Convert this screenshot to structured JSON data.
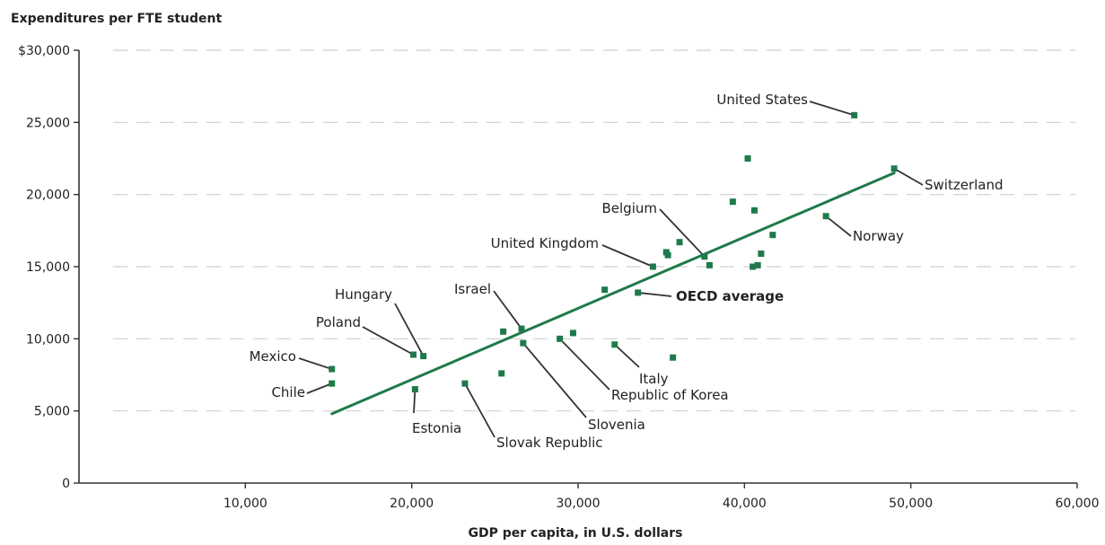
{
  "chart_data": {
    "type": "scatter",
    "title": "Expenditures per FTE student",
    "xlabel": "GDP per capita, in U.S. dollars",
    "ylabel": "Expenditures per FTE student",
    "xlim": [
      0,
      60000
    ],
    "ylim": [
      0,
      30000
    ],
    "x_ticks": [
      {
        "value": 10000,
        "label": "10,000"
      },
      {
        "value": 20000,
        "label": "20,000"
      },
      {
        "value": 30000,
        "label": "30,000"
      },
      {
        "value": 40000,
        "label": "40,000"
      },
      {
        "value": 50000,
        "label": "50,000"
      },
      {
        "value": 60000,
        "label": "60,000"
      }
    ],
    "y_ticks": [
      {
        "value": 0,
        "label": "0"
      },
      {
        "value": 5000,
        "label": "5,000"
      },
      {
        "value": 10000,
        "label": "10,000"
      },
      {
        "value": 15000,
        "label": "15,000"
      },
      {
        "value": 20000,
        "label": "20,000"
      },
      {
        "value": 25000,
        "label": "25,000"
      },
      {
        "value": 30000,
        "label": "$30,000"
      }
    ],
    "grid": "horizontal-dashed",
    "colors": {
      "points": "#1e7a4a",
      "trend": "#1e7a4a",
      "axis": "#333333",
      "grid": "#cfcfcf"
    },
    "trend_line": {
      "x": [
        15200,
        49000
      ],
      "y": [
        4800,
        21500
      ]
    },
    "points": [
      {
        "label": "United States",
        "x": 46600,
        "y": 25500
      },
      {
        "label": "Switzerland",
        "x": 49000,
        "y": 21800
      },
      {
        "label": "Norway",
        "x": 44900,
        "y": 18500
      },
      {
        "label": "Belgium",
        "x": 37600,
        "y": 15700
      },
      {
        "label": "United Kingdom",
        "x": 34500,
        "y": 15000
      },
      {
        "label": "OECD average",
        "x": 33600,
        "y": 13200,
        "bold": true
      },
      {
        "label": "Israel",
        "x": 26600,
        "y": 10700
      },
      {
        "label": "Hungary",
        "x": 20700,
        "y": 8800
      },
      {
        "label": "Poland",
        "x": 20100,
        "y": 8900
      },
      {
        "label": "Mexico",
        "x": 15200,
        "y": 7900
      },
      {
        "label": "Chile",
        "x": 15200,
        "y": 6900
      },
      {
        "label": "Estonia",
        "x": 20200,
        "y": 6500
      },
      {
        "label": "Slovak Republic",
        "x": 23200,
        "y": 6900
      },
      {
        "label": "Slovenia",
        "x": 26700,
        "y": 9700
      },
      {
        "label": "Republic of Korea",
        "x": 28900,
        "y": 10000
      },
      {
        "label": "Italy",
        "x": 32200,
        "y": 9600
      },
      {
        "x": 25500,
        "y": 10500
      },
      {
        "x": 25400,
        "y": 7600
      },
      {
        "x": 29700,
        "y": 10400
      },
      {
        "x": 31600,
        "y": 13400
      },
      {
        "x": 35700,
        "y": 8700
      },
      {
        "x": 35300,
        "y": 16000
      },
      {
        "x": 35400,
        "y": 15800
      },
      {
        "x": 36100,
        "y": 16700
      },
      {
        "x": 37900,
        "y": 15100
      },
      {
        "x": 39300,
        "y": 19500
      },
      {
        "x": 40200,
        "y": 22500
      },
      {
        "x": 40600,
        "y": 18900
      },
      {
        "x": 40500,
        "y": 15000
      },
      {
        "x": 40800,
        "y": 15100
      },
      {
        "x": 41000,
        "y": 15900
      },
      {
        "x": 41700,
        "y": 17200
      }
    ]
  }
}
